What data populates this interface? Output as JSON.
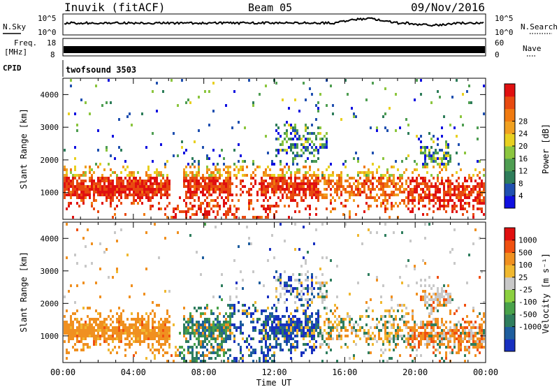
{
  "header": {
    "station": "Inuvik (fitACF)",
    "beam": "Beam 05",
    "date": "09/Nov/2016"
  },
  "aux": {
    "nsky_label": "N.Sky",
    "nsky_ticks": [
      "10^5",
      "10^0"
    ],
    "nsearch_label": "N.Search",
    "nsearch_ticks": [
      "10^5",
      "10^0"
    ],
    "freq_label": "Freq.",
    "freq_unit": "[MHz]",
    "freq_ticks": [
      "18",
      "8"
    ],
    "nave_label": "Nave",
    "nave_ticks": [
      "60",
      "0"
    ],
    "cpid_label": "CPID",
    "cpid_value": "twofsound 3503"
  },
  "chart_data": [
    {
      "type": "heatmap",
      "title": "",
      "ylabel": "Slant Range [km]",
      "xlabel": "",
      "x_ticks": [
        "00:00",
        "04:00",
        "08:00",
        "12:00",
        "16:00",
        "20:00",
        "00:00"
      ],
      "y_ticks": [
        1000,
        2000,
        3000,
        4000
      ],
      "ylim": [
        180,
        4500
      ],
      "colorbar": {
        "label": "Power [dB]",
        "ticks": [
          "4",
          "8",
          "12",
          "16",
          "20",
          "24",
          "28"
        ],
        "colors": [
          "#1010e0",
          "#2050b0",
          "#2e7d5a",
          "#4f9e52",
          "#8cc63f",
          "#e8d020",
          "#f0a020",
          "#f07a10",
          "#e84a10",
          "#e01010"
        ]
      }
    },
    {
      "type": "heatmap",
      "title": "",
      "ylabel": "Slant Range [km]",
      "xlabel": "Time UT",
      "x_ticks": [
        "00:00",
        "04:00",
        "08:00",
        "12:00",
        "16:00",
        "20:00",
        "00:00"
      ],
      "y_ticks": [
        1000,
        2000,
        3000,
        4000
      ],
      "ylim": [
        180,
        4500
      ],
      "colorbar": {
        "label": "Velocity [m s⁻¹]",
        "ticks": [
          "1000",
          "500",
          "100",
          "25",
          "-25",
          "-100",
          "-500",
          "-1000"
        ],
        "colors": [
          "#1830c0",
          "#1f5e9e",
          "#2f7e5e",
          "#49a24a",
          "#8cd040",
          "#c8c8c8",
          "#f0b830",
          "#f09020",
          "#f05010",
          "#e01010"
        ]
      }
    }
  ]
}
